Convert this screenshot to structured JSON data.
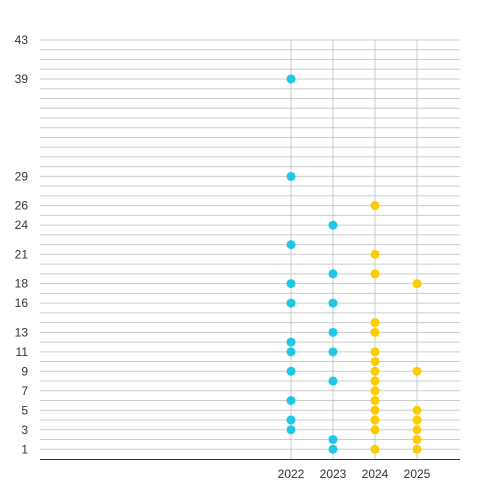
{
  "chart_data": {
    "type": "scatter",
    "x": [
      "2022",
      "2023",
      "2024",
      "2025"
    ],
    "y_ticks": [
      1,
      3,
      5,
      7,
      9,
      11,
      13,
      16,
      18,
      21,
      24,
      26,
      29,
      39,
      43
    ],
    "ylim": [
      0,
      43
    ],
    "grid": true,
    "legend": "none",
    "title": "",
    "xlabel": "",
    "ylabel": "",
    "series": [
      {
        "color": "#1ec8e6",
        "points": [
          {
            "x": "2022",
            "y": 3
          },
          {
            "x": "2022",
            "y": 4
          },
          {
            "x": "2022",
            "y": 6
          },
          {
            "x": "2022",
            "y": 9
          },
          {
            "x": "2022",
            "y": 11
          },
          {
            "x": "2022",
            "y": 12
          },
          {
            "x": "2022",
            "y": 16
          },
          {
            "x": "2022",
            "y": 18
          },
          {
            "x": "2022",
            "y": 22
          },
          {
            "x": "2022",
            "y": 29
          },
          {
            "x": "2022",
            "y": 39
          },
          {
            "x": "2023",
            "y": 1
          },
          {
            "x": "2023",
            "y": 2
          },
          {
            "x": "2023",
            "y": 8
          },
          {
            "x": "2023",
            "y": 11
          },
          {
            "x": "2023",
            "y": 13
          },
          {
            "x": "2023",
            "y": 16
          },
          {
            "x": "2023",
            "y": 19
          },
          {
            "x": "2023",
            "y": 24
          }
        ]
      },
      {
        "color": "#ffcc00",
        "points": [
          {
            "x": "2024",
            "y": 1
          },
          {
            "x": "2024",
            "y": 3
          },
          {
            "x": "2024",
            "y": 4
          },
          {
            "x": "2024",
            "y": 5
          },
          {
            "x": "2024",
            "y": 6
          },
          {
            "x": "2024",
            "y": 7
          },
          {
            "x": "2024",
            "y": 8
          },
          {
            "x": "2024",
            "y": 9
          },
          {
            "x": "2024",
            "y": 10
          },
          {
            "x": "2024",
            "y": 11
          },
          {
            "x": "2024",
            "y": 13
          },
          {
            "x": "2024",
            "y": 14
          },
          {
            "x": "2024",
            "y": 19
          },
          {
            "x": "2024",
            "y": 21
          },
          {
            "x": "2024",
            "y": 26
          },
          {
            "x": "2025",
            "y": 1
          },
          {
            "x": "2025",
            "y": 2
          },
          {
            "x": "2025",
            "y": 3
          },
          {
            "x": "2025",
            "y": 4
          },
          {
            "x": "2025",
            "y": 5
          },
          {
            "x": "2025",
            "y": 9
          },
          {
            "x": "2025",
            "y": 18
          }
        ]
      }
    ]
  },
  "colors": {
    "grid": "#cccccc",
    "axis": "#333333",
    "cyan": "#1ec8e6",
    "yellow": "#ffcc00"
  }
}
